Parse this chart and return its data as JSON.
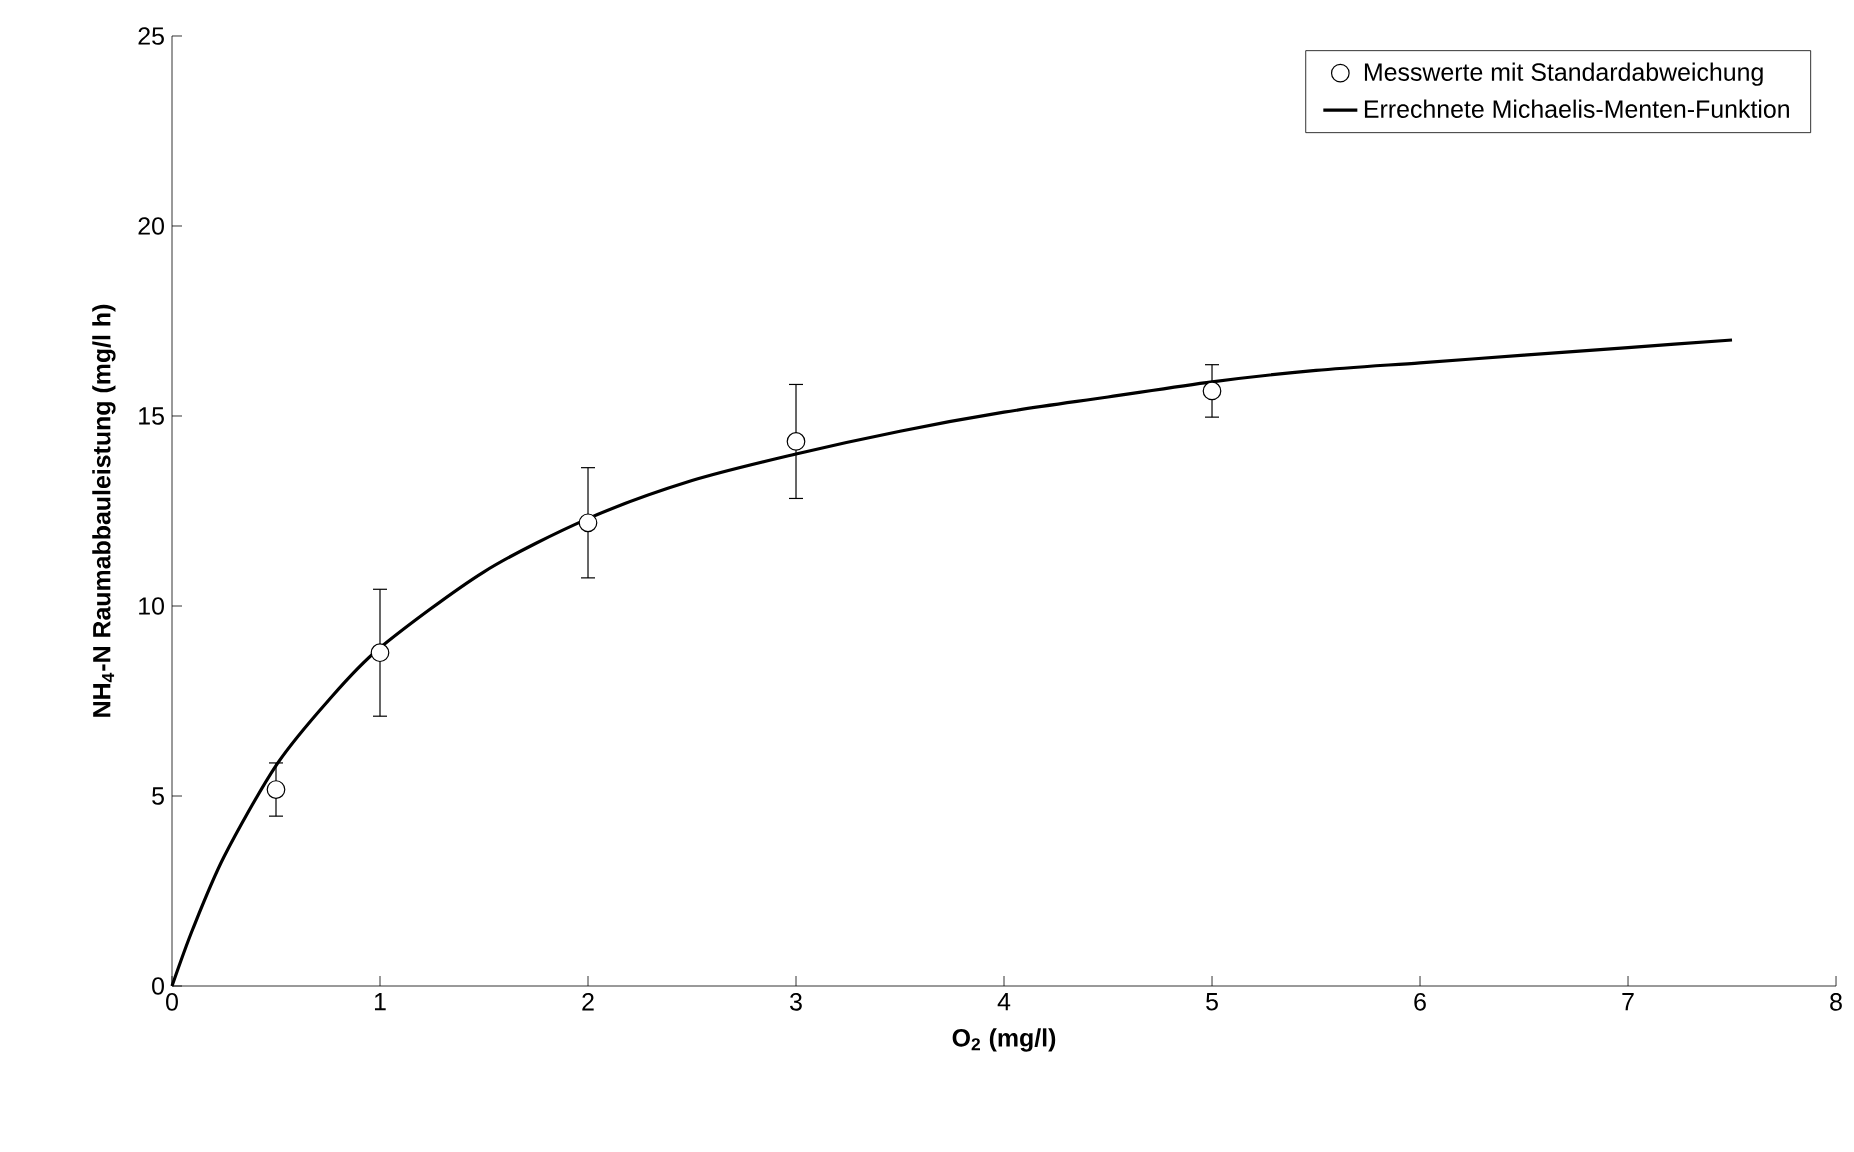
{
  "chart_data": {
    "type": "scatter",
    "xlabel": "O$_{2}$ (mg/l)",
    "ylabel": "NH$_{4}$-N Raumabbauleistung (mg/l h)",
    "xlim": [
      0,
      8
    ],
    "xticks": [
      0,
      1,
      2,
      3,
      4,
      5,
      6,
      7,
      8
    ],
    "ylim": [
      0,
      25
    ],
    "yticks": [
      0,
      5,
      10,
      15,
      20,
      25
    ],
    "grid": false,
    "legend": "top right",
    "series": [
      {
        "name": "Messwerte mit Standardabweichung",
        "color": "#000000",
        "marker": "circle",
        "x": [
          0.5,
          1,
          2,
          3,
          5
        ],
        "values": [
          5.17,
          8.77,
          12.19,
          14.33,
          15.66
        ],
        "errors": [
          0.7,
          1.67,
          1.45,
          1.5,
          0.69
        ]
      },
      {
        "name": "Errechnete Michaelis-Menten-Funktion",
        "type": "line",
        "color": "#000000",
        "marker": "none",
        "line_style": "solid",
        "x": [
          0,
          0.1,
          0.25,
          0.5,
          0.75,
          1,
          1.5,
          2,
          2.5,
          3,
          3.5,
          4,
          4.5,
          5,
          5.5,
          6,
          6.5,
          7,
          7.5
        ],
        "values": [
          0,
          1.5,
          3.4,
          5.8,
          7.5,
          8.9,
          10.9,
          12.3,
          13.3,
          14.0,
          14.6,
          15.1,
          15.5,
          15.9,
          16.2,
          16.4,
          16.6,
          16.8,
          17.0
        ]
      }
    ]
  }
}
